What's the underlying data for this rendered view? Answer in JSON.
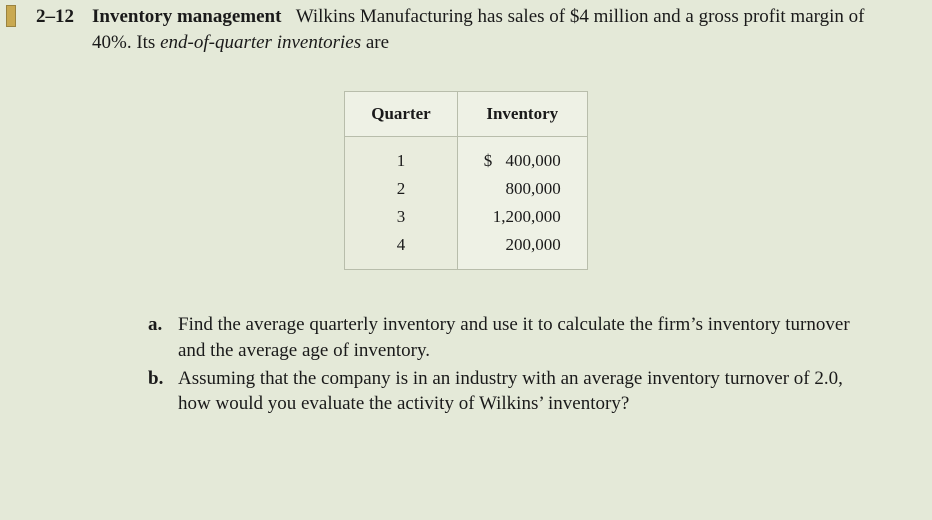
{
  "problem": {
    "number": "2–12",
    "title": "Inventory management",
    "intro_part1": "Wilkins Manufacturing has sales of $4 million and a gross profit margin of 40%. Its ",
    "intro_italic": "end-of-quarter inventories",
    "intro_part2": " are"
  },
  "table": {
    "columns": [
      "Quarter",
      "Inventory"
    ],
    "rows": [
      {
        "quarter": "1",
        "inventory": "400,000",
        "has_dollar": true
      },
      {
        "quarter": "2",
        "inventory": "800,000",
        "has_dollar": false
      },
      {
        "quarter": "3",
        "inventory": "1,200,000",
        "has_dollar": false
      },
      {
        "quarter": "4",
        "inventory": "200,000",
        "has_dollar": false
      }
    ],
    "styling": {
      "border_color": "#b8bdab",
      "header_bg": "#eef1e5",
      "q_col_bg": "#e9ecdd",
      "font_size": 17
    }
  },
  "questions": {
    "a": {
      "letter": "a.",
      "text": "Find the average quarterly inventory and use it to calculate the firm’s inventory turnover and the average age of inventory."
    },
    "b": {
      "letter": "b.",
      "text": "Assuming that the company is in an industry with an average inventory turnover of 2.0, how would you evaluate the activity of Wilkins’ inventory?"
    }
  },
  "colors": {
    "page_bg": "#e4e9d8",
    "tab_bg": "#c9a951",
    "tab_border": "#9a8340",
    "text": "#1a1a1a"
  }
}
